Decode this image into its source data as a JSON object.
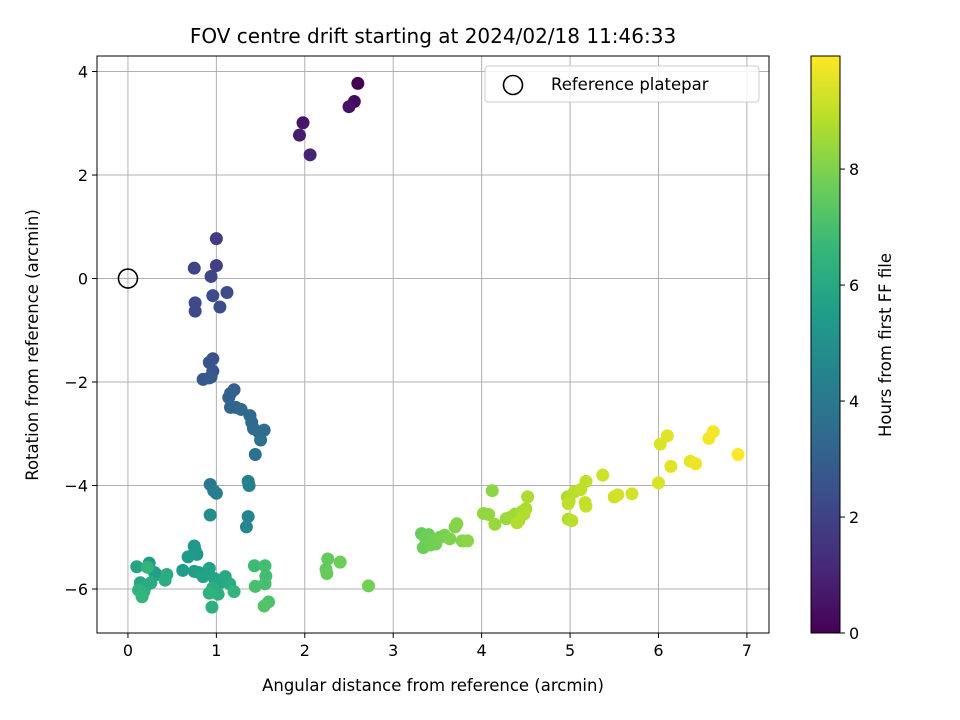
{
  "chart_data": {
    "type": "scatter",
    "title": "FOV centre drift starting at 2024/02/18 11:46:33",
    "xlabel": "Angular distance from reference (arcmin)",
    "ylabel": "Rotation from reference (arcmin)",
    "xlim": [
      -0.35,
      7.25
    ],
    "ylim": [
      -6.85,
      4.3
    ],
    "xticks": [
      0,
      1,
      2,
      3,
      4,
      5,
      6,
      7
    ],
    "yticks": [
      -6,
      -4,
      -2,
      0,
      2,
      4
    ],
    "xtick_labels": [
      "0",
      "1",
      "2",
      "3",
      "4",
      "5",
      "6",
      "7"
    ],
    "ytick_labels": [
      "−6",
      "−4",
      "−2",
      "0",
      "2",
      "4"
    ],
    "grid": true,
    "legend_position": "top-right",
    "legend_label": "Reference platepar",
    "reference_point": {
      "x": 0,
      "y": 0
    },
    "colormap": "viridis",
    "colorbar": {
      "label": "Hours from first FF file",
      "min": 0,
      "max": 9.95,
      "ticks": [
        0,
        2,
        4,
        6,
        8
      ],
      "tick_labels": [
        "0",
        "2",
        "4",
        "6",
        "8"
      ],
      "colors": [
        "#440154",
        "#482878",
        "#3e4989",
        "#31688e",
        "#26828e",
        "#1f9e89",
        "#35b779",
        "#6ece58",
        "#b5de2b",
        "#fde725"
      ]
    },
    "series": [
      {
        "x": [
          2.6,
          2.56,
          2.5,
          1.98,
          1.94,
          2.06
        ],
        "y": [
          3.77,
          3.42,
          3.32,
          3.01,
          2.77,
          2.39
        ],
        "t": [
          0.0,
          0.3,
          0.5,
          0.6,
          0.8,
          1.0
        ]
      },
      {
        "x": [
          1.0,
          1.0,
          0.75,
          0.94,
          0.76,
          0.76,
          0.96,
          1.12,
          1.04
        ],
        "y": [
          0.77,
          0.25,
          0.2,
          0.04,
          -0.47,
          -0.63,
          -0.33,
          -0.27,
          -0.55
        ],
        "t": [
          1.8,
          1.9,
          2.0,
          2.1,
          2.2,
          2.2,
          2.3,
          2.3,
          2.4
        ]
      },
      {
        "x": [
          0.96,
          0.92,
          0.96,
          0.94,
          0.85,
          0.92
        ],
        "y": [
          -1.55,
          -1.62,
          -1.79,
          -1.9,
          -1.95,
          -1.92
        ],
        "t": [
          2.5,
          2.6,
          2.6,
          2.7,
          2.7,
          2.8
        ]
      },
      {
        "x": [
          1.2,
          1.16,
          1.14,
          1.16,
          1.22,
          1.28,
          1.38,
          1.4,
          1.42,
          1.48,
          1.54,
          1.5,
          1.44
        ],
        "y": [
          -2.15,
          -2.22,
          -2.3,
          -2.49,
          -2.49,
          -2.53,
          -2.65,
          -2.78,
          -2.9,
          -2.97,
          -2.93,
          -3.12,
          -3.4
        ],
        "t": [
          3.0,
          3.1,
          3.1,
          3.2,
          3.2,
          3.3,
          3.3,
          3.4,
          3.4,
          3.5,
          3.5,
          3.6,
          3.7
        ]
      },
      {
        "x": [
          0.93,
          0.97,
          1.0,
          1.36,
          1.37,
          1.36,
          1.34,
          0.93
        ],
        "y": [
          -3.98,
          -4.1,
          -4.15,
          -3.92,
          -4.0,
          -4.6,
          -4.8,
          -4.57
        ],
        "t": [
          4.0,
          4.1,
          4.2,
          4.3,
          4.4,
          4.5,
          4.6,
          4.9
        ]
      },
      {
        "x": [
          0.75,
          0.76,
          0.78,
          0.68,
          0.62,
          0.75,
          0.8,
          0.85,
          0.92,
          0.98,
          1.04,
          1.1,
          1.15,
          0.96,
          1.02,
          1.2,
          0.92,
          0.95
        ],
        "y": [
          -5.17,
          -5.25,
          -5.33,
          -5.38,
          -5.64,
          -5.66,
          -5.68,
          -5.76,
          -5.6,
          -5.8,
          -5.88,
          -5.76,
          -5.9,
          -5.98,
          -6.1,
          -6.05,
          -6.08,
          -6.35
        ],
        "t": [
          5.2,
          5.3,
          5.3,
          5.4,
          5.5,
          5.5,
          5.6,
          5.7,
          5.7,
          5.8,
          5.9,
          6.0,
          6.1,
          6.2,
          6.3,
          6.5,
          6.4,
          6.3
        ]
      },
      {
        "x": [
          0.24,
          0.3,
          0.32,
          0.1,
          0.14,
          0.2,
          0.26,
          0.44,
          0.42,
          0.18,
          0.12,
          0.16,
          0.22
        ],
        "y": [
          -5.5,
          -5.68,
          -5.72,
          -5.57,
          -5.88,
          -5.95,
          -5.88,
          -5.72,
          -5.83,
          -6.05,
          -6.02,
          -6.15,
          -5.58
        ],
        "t": [
          5.4,
          5.6,
          5.6,
          5.8,
          5.9,
          6.0,
          6.1,
          6.1,
          6.2,
          6.3,
          6.4,
          6.5,
          6.5
        ]
      },
      {
        "x": [
          1.43,
          1.55,
          1.56,
          1.55,
          1.44,
          1.59,
          1.54,
          2.26,
          2.24,
          2.25,
          2.4,
          2.72
        ],
        "y": [
          -5.55,
          -5.55,
          -5.75,
          -5.9,
          -5.95,
          -6.25,
          -6.33,
          -5.42,
          -5.62,
          -5.7,
          -5.48,
          -5.94
        ],
        "t": [
          6.8,
          6.9,
          6.9,
          7.0,
          7.0,
          7.1,
          7.2,
          7.5,
          7.5,
          7.6,
          7.7,
          7.8
        ]
      },
      {
        "x": [
          3.32,
          3.36,
          3.4,
          3.46,
          3.48,
          3.53,
          3.58,
          3.64,
          3.7,
          3.72,
          3.78,
          3.84,
          3.34,
          3.42
        ],
        "y": [
          -4.93,
          -5.0,
          -4.95,
          -5.05,
          -5.13,
          -5.0,
          -4.96,
          -5.03,
          -4.8,
          -4.74,
          -5.07,
          -5.07,
          -5.2,
          -5.15
        ],
        "t": [
          7.6,
          7.7,
          7.7,
          7.8,
          7.8,
          7.9,
          7.9,
          8.0,
          8.0,
          8.1,
          8.1,
          8.2,
          7.7,
          7.8
        ]
      },
      {
        "x": [
          4.12,
          4.02,
          4.08,
          4.15,
          4.28,
          4.34,
          4.38,
          4.42,
          4.46,
          4.5,
          4.52,
          4.48,
          4.4
        ],
        "y": [
          -4.1,
          -4.54,
          -4.56,
          -4.75,
          -4.64,
          -4.6,
          -4.55,
          -4.68,
          -4.5,
          -4.45,
          -4.22,
          -4.55,
          -4.72
        ],
        "t": [
          8.2,
          8.3,
          8.3,
          8.4,
          8.4,
          8.5,
          8.5,
          8.6,
          8.6,
          8.7,
          8.7,
          8.8,
          8.8
        ]
      },
      {
        "x": [
          4.97,
          4.99,
          4.98,
          5.02,
          5.05,
          5.12,
          5.18,
          5.17,
          5.18,
          5.37,
          5.5,
          5.54,
          5.7,
          4.98
        ],
        "y": [
          -4.22,
          -4.3,
          -4.65,
          -4.68,
          -4.12,
          -4.08,
          -3.92,
          -4.33,
          -4.4,
          -3.8,
          -4.22,
          -4.18,
          -4.16,
          -4.35
        ],
        "t": [
          8.7,
          8.8,
          8.8,
          8.9,
          8.9,
          9.0,
          9.0,
          9.1,
          9.1,
          9.2,
          9.2,
          9.3,
          9.3,
          9.0
        ]
      },
      {
        "x": [
          6.02,
          6.1,
          6.14,
          6.0,
          6.36,
          6.42,
          6.57,
          6.62,
          6.9
        ],
        "y": [
          -3.2,
          -3.04,
          -3.63,
          -3.95,
          -3.53,
          -3.58,
          -3.09,
          -2.96,
          -3.4
        ],
        "t": [
          9.4,
          9.5,
          9.5,
          9.4,
          9.6,
          9.7,
          9.8,
          9.8,
          9.9
        ]
      }
    ]
  }
}
